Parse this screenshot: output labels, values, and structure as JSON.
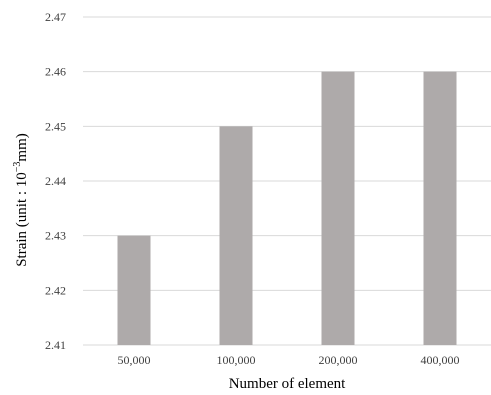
{
  "chart_data": {
    "type": "bar",
    "categories": [
      "50,000",
      "100,000",
      "200,000",
      "400,000"
    ],
    "values": [
      2.43,
      2.45,
      2.46,
      2.46
    ],
    "xlabel": "Number of element",
    "ylabel_prefix": "Strain (unit : 10",
    "ylabel_exp": "−3",
    "ylabel_suffix": "mm)",
    "ylim": [
      2.41,
      2.47
    ],
    "yticks": [
      "2.41",
      "2.42",
      "2.43",
      "2.44",
      "2.45",
      "2.46",
      "2.47"
    ],
    "grid": true,
    "bar_color": "#aeaaaa",
    "grid_color": "#d9d9d9"
  }
}
